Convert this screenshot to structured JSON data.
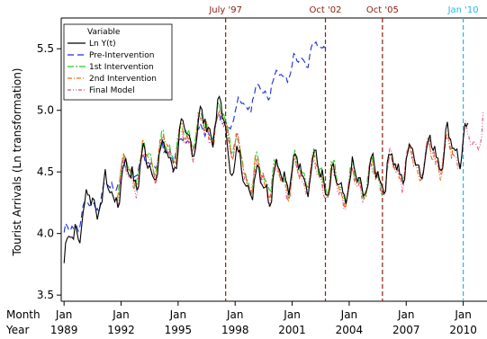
{
  "chart_data": {
    "type": "line",
    "title": "",
    "ylabel": "Tourist Arrivals (Ln transformation)",
    "xlabel_row1": "Month",
    "xlabel_row2": "Year",
    "ylim": [
      3.45,
      5.75
    ],
    "yticks": [
      3.5,
      4.0,
      4.5,
      5.0,
      5.5
    ],
    "ytick_labels": [
      "3.5",
      "4.0",
      "4.5",
      "5.0",
      "5.5"
    ],
    "xlim": [
      1988.85,
      2011.25
    ],
    "xticks": [
      {
        "x": 1989,
        "month": "Jan",
        "year": "1989"
      },
      {
        "x": 1992,
        "month": "Jan",
        "year": "1992"
      },
      {
        "x": 1995,
        "month": "Jan",
        "year": "1995"
      },
      {
        "x": 1998,
        "month": "Jan",
        "year": "1998"
      },
      {
        "x": 2001,
        "month": "Jan",
        "year": "2001"
      },
      {
        "x": 2004,
        "month": "Jan",
        "year": "2004"
      },
      {
        "x": 2007,
        "month": "Jan",
        "year": "2007"
      },
      {
        "x": 2010,
        "month": "Jan",
        "year": "2010"
      }
    ],
    "grid": false,
    "legend": {
      "title": "Variable",
      "placement": "top-left",
      "entries": [
        {
          "label": "Ln Y(t)",
          "color": "#000000",
          "dash": "none"
        },
        {
          "label": "Pre-Intervention",
          "color": "#1a2fd6",
          "dash": "7,4"
        },
        {
          "label": "1st Intervention",
          "color": "#22cc22",
          "dash": "7,2,2,2"
        },
        {
          "label": "2nd Intervention",
          "color": "#f07010",
          "dash": "5,2,1,2"
        },
        {
          "label": "Final Model",
          "color": "#e0507a",
          "dash": "4,2,1,2,1,2"
        }
      ]
    },
    "vlines": [
      {
        "x": 1997.5,
        "label": "July '97",
        "color": "#8b2010"
      },
      {
        "x": 2002.75,
        "label": "Oct '02",
        "color": "#8b2010"
      },
      {
        "x": 2005.75,
        "label": "Oct '05",
        "color": "#8b2010"
      },
      {
        "x": 2010.0,
        "label": "Jan '10",
        "color": "#22b8e6"
      }
    ],
    "anchors": {
      "observed": [
        [
          1989.0,
          3.76
        ],
        [
          1989.6,
          4.05
        ],
        [
          1990.5,
          4.28
        ],
        [
          1991.5,
          4.32
        ],
        [
          1992.5,
          4.5
        ],
        [
          1993.5,
          4.56
        ],
        [
          1994.5,
          4.62
        ],
        [
          1995.5,
          4.78
        ],
        [
          1996.5,
          4.88
        ],
        [
          1997.3,
          4.95
        ],
        [
          1997.8,
          4.62
        ],
        [
          1998.5,
          4.45
        ],
        [
          1999.5,
          4.4
        ],
        [
          2000.5,
          4.48
        ],
        [
          2001.5,
          4.52
        ],
        [
          2002.5,
          4.5
        ],
        [
          2003.2,
          4.35
        ],
        [
          2004.0,
          4.4
        ],
        [
          2005.0,
          4.45
        ],
        [
          2006.0,
          4.52
        ],
        [
          2007.0,
          4.57
        ],
        [
          2008.0,
          4.63
        ],
        [
          2009.0,
          4.7
        ],
        [
          2010.0,
          4.72
        ],
        [
          2010.3,
          4.72
        ]
      ],
      "pre_intervention": [
        [
          1989.0,
          3.96
        ],
        [
          1990.2,
          4.2
        ],
        [
          1991.0,
          4.3
        ],
        [
          1991.8,
          4.45
        ],
        [
          1997.5,
          4.9
        ],
        [
          1998.5,
          5.05
        ],
        [
          2000.0,
          5.22
        ],
        [
          2001.0,
          5.35
        ],
        [
          2002.0,
          5.46
        ],
        [
          2002.8,
          5.58
        ]
      ],
      "first_intervention": [
        [
          1991.8,
          4.45
        ],
        [
          1994.0,
          4.65
        ],
        [
          1996.0,
          4.85
        ],
        [
          1997.5,
          4.92
        ],
        [
          1998.5,
          4.5
        ],
        [
          2000.0,
          4.45
        ],
        [
          2002.0,
          4.52
        ],
        [
          2002.7,
          4.48
        ],
        [
          2003.5,
          4.4
        ],
        [
          2005.0,
          4.45
        ],
        [
          2005.8,
          4.48
        ]
      ],
      "second_intervention": [
        [
          1991.8,
          4.43
        ],
        [
          1994.0,
          4.63
        ],
        [
          1996.0,
          4.83
        ],
        [
          1997.5,
          4.9
        ],
        [
          1998.5,
          4.48
        ],
        [
          2000.0,
          4.44
        ],
        [
          2002.0,
          4.5
        ],
        [
          2003.5,
          4.38
        ],
        [
          2005.0,
          4.43
        ],
        [
          2006.0,
          4.5
        ],
        [
          2008.0,
          4.6
        ],
        [
          2009.5,
          4.65
        ]
      ],
      "final_model": [
        [
          1991.8,
          4.4
        ],
        [
          1994.0,
          4.6
        ],
        [
          1996.0,
          4.8
        ],
        [
          1997.5,
          4.88
        ],
        [
          1998.5,
          4.46
        ],
        [
          2000.0,
          4.42
        ],
        [
          2002.0,
          4.48
        ],
        [
          2003.5,
          4.36
        ],
        [
          2005.0,
          4.42
        ],
        [
          2006.5,
          4.52
        ],
        [
          2008.0,
          4.6
        ],
        [
          2009.5,
          4.67
        ],
        [
          2010.5,
          4.75
        ],
        [
          2011.1,
          4.85
        ]
      ]
    },
    "seasonal_amplitude": 0.12
  }
}
